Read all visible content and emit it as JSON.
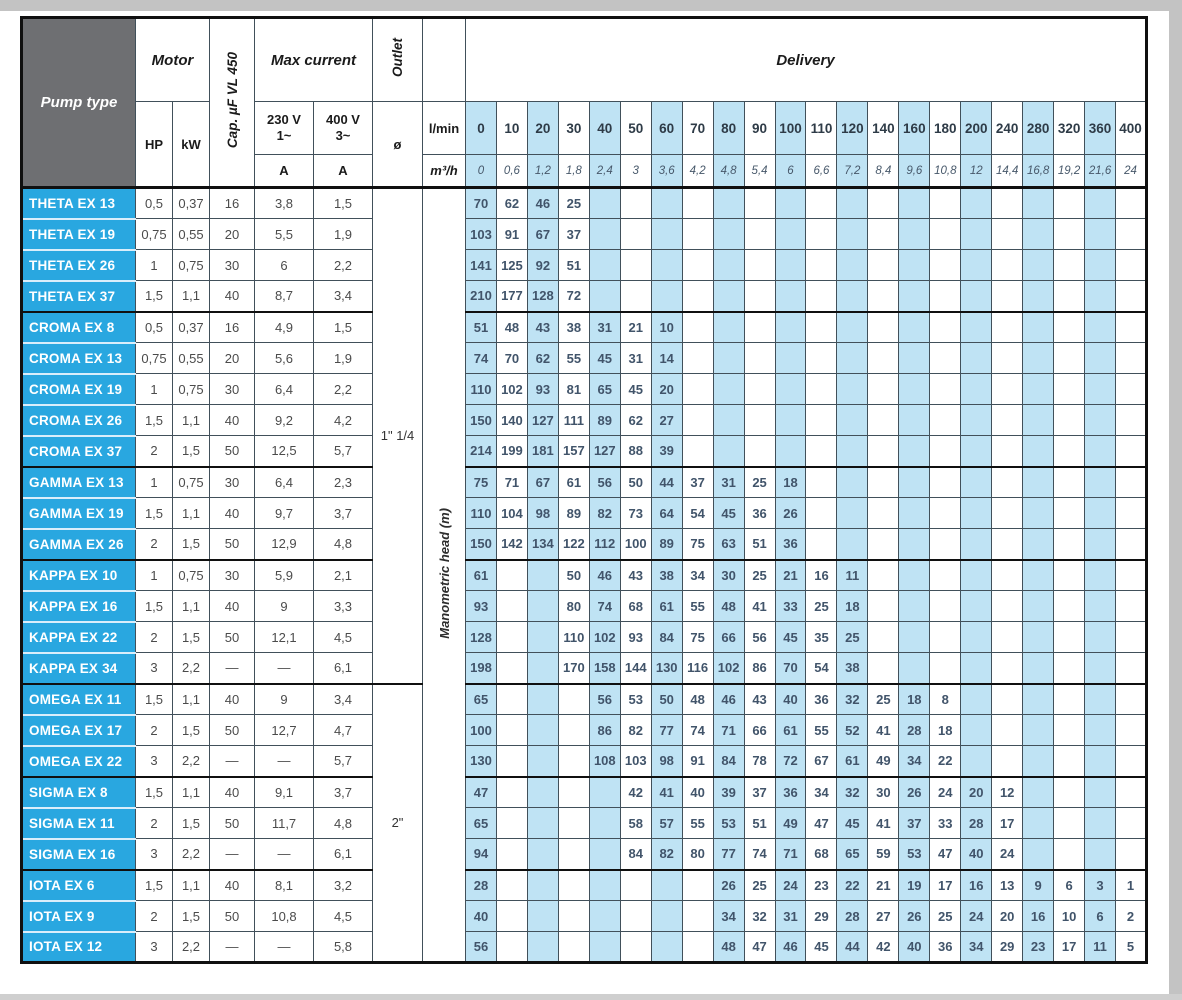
{
  "header": {
    "pump_type": "Pump type",
    "motor": "Motor",
    "hp": "HP",
    "kw": "kW",
    "cap": "Cap. µF VL 450",
    "max_current": "Max current",
    "v230": "230 V\n1~",
    "v400": "400 V\n3~",
    "amp": "A",
    "outlet": "Outlet",
    "diameter": "ø",
    "delivery": "Delivery",
    "lmin": "l/min",
    "m3h": "m³/h",
    "manometric": "Manometric head (m)"
  },
  "colors": {
    "pump_blue": "#29a7e0",
    "header_gray": "#6e6f72",
    "column_light_blue": "#bfe3f4"
  },
  "flow_lmin": [
    "0",
    "10",
    "20",
    "30",
    "40",
    "50",
    "60",
    "70",
    "80",
    "90",
    "100",
    "110",
    "120",
    "140",
    "160",
    "180",
    "200",
    "240",
    "280",
    "320",
    "360",
    "400"
  ],
  "flow_m3h": [
    "0",
    "0,6",
    "1,2",
    "1,8",
    "2,4",
    "3",
    "3,6",
    "4,2",
    "4,8",
    "5,4",
    "6",
    "6,6",
    "7,2",
    "8,4",
    "9,6",
    "10,8",
    "12",
    "14,4",
    "16,8",
    "19,2",
    "21,6",
    "24"
  ],
  "rows": [
    {
      "name": "THETA EX 13",
      "hp": "0,5",
      "kw": "0,37",
      "cap": "16",
      "a230": "3,8",
      "a400": "1,5",
      "group_start": true,
      "outlet": {
        "label": "1\" 1/4",
        "span": 16
      },
      "head": [
        "70",
        "62",
        "46",
        "25",
        "",
        "",
        "",
        "",
        "",
        "",
        "",
        "",
        "",
        "",
        "",
        "",
        "",
        "",
        "",
        "",
        "",
        ""
      ]
    },
    {
      "name": "THETA EX 19",
      "hp": "0,75",
      "kw": "0,55",
      "cap": "20",
      "a230": "5,5",
      "a400": "1,9",
      "head": [
        "103",
        "91",
        "67",
        "37",
        "",
        "",
        "",
        "",
        "",
        "",
        "",
        "",
        "",
        "",
        "",
        "",
        "",
        "",
        "",
        "",
        "",
        ""
      ]
    },
    {
      "name": "THETA EX 26",
      "hp": "1",
      "kw": "0,75",
      "cap": "30",
      "a230": "6",
      "a400": "2,2",
      "head": [
        "141",
        "125",
        "92",
        "51",
        "",
        "",
        "",
        "",
        "",
        "",
        "",
        "",
        "",
        "",
        "",
        "",
        "",
        "",
        "",
        "",
        "",
        ""
      ]
    },
    {
      "name": "THETA EX 37",
      "hp": "1,5",
      "kw": "1,1",
      "cap": "40",
      "a230": "8,7",
      "a400": "3,4",
      "head": [
        "210",
        "177",
        "128",
        "72",
        "",
        "",
        "",
        "",
        "",
        "",
        "",
        "",
        "",
        "",
        "",
        "",
        "",
        "",
        "",
        "",
        "",
        ""
      ]
    },
    {
      "name": "CROMA EX 8",
      "hp": "0,5",
      "kw": "0,37",
      "cap": "16",
      "a230": "4,9",
      "a400": "1,5",
      "group_start": true,
      "head": [
        "51",
        "48",
        "43",
        "38",
        "31",
        "21",
        "10",
        "",
        "",
        "",
        "",
        "",
        "",
        "",
        "",
        "",
        "",
        "",
        "",
        "",
        "",
        ""
      ]
    },
    {
      "name": "CROMA EX 13",
      "hp": "0,75",
      "kw": "0,55",
      "cap": "20",
      "a230": "5,6",
      "a400": "1,9",
      "head": [
        "74",
        "70",
        "62",
        "55",
        "45",
        "31",
        "14",
        "",
        "",
        "",
        "",
        "",
        "",
        "",
        "",
        "",
        "",
        "",
        "",
        "",
        "",
        ""
      ]
    },
    {
      "name": "CROMA EX 19",
      "hp": "1",
      "kw": "0,75",
      "cap": "30",
      "a230": "6,4",
      "a400": "2,2",
      "head": [
        "110",
        "102",
        "93",
        "81",
        "65",
        "45",
        "20",
        "",
        "",
        "",
        "",
        "",
        "",
        "",
        "",
        "",
        "",
        "",
        "",
        "",
        "",
        ""
      ]
    },
    {
      "name": "CROMA EX 26",
      "hp": "1,5",
      "kw": "1,1",
      "cap": "40",
      "a230": "9,2",
      "a400": "4,2",
      "head": [
        "150",
        "140",
        "127",
        "111",
        "89",
        "62",
        "27",
        "",
        "",
        "",
        "",
        "",
        "",
        "",
        "",
        "",
        "",
        "",
        "",
        "",
        "",
        ""
      ]
    },
    {
      "name": "CROMA EX 37",
      "hp": "2",
      "kw": "1,5",
      "cap": "50",
      "a230": "12,5",
      "a400": "5,7",
      "head": [
        "214",
        "199",
        "181",
        "157",
        "127",
        "88",
        "39",
        "",
        "",
        "",
        "",
        "",
        "",
        "",
        "",
        "",
        "",
        "",
        "",
        "",
        "",
        ""
      ]
    },
    {
      "name": "GAMMA EX 13",
      "hp": "1",
      "kw": "0,75",
      "cap": "30",
      "a230": "6,4",
      "a400": "2,3",
      "group_start": true,
      "head": [
        "75",
        "71",
        "67",
        "61",
        "56",
        "50",
        "44",
        "37",
        "31",
        "25",
        "18",
        "",
        "",
        "",
        "",
        "",
        "",
        "",
        "",
        "",
        "",
        ""
      ]
    },
    {
      "name": "GAMMA EX 19",
      "hp": "1,5",
      "kw": "1,1",
      "cap": "40",
      "a230": "9,7",
      "a400": "3,7",
      "head": [
        "110",
        "104",
        "98",
        "89",
        "82",
        "73",
        "64",
        "54",
        "45",
        "36",
        "26",
        "",
        "",
        "",
        "",
        "",
        "",
        "",
        "",
        "",
        "",
        ""
      ]
    },
    {
      "name": "GAMMA EX 26",
      "hp": "2",
      "kw": "1,5",
      "cap": "50",
      "a230": "12,9",
      "a400": "4,8",
      "head": [
        "150",
        "142",
        "134",
        "122",
        "112",
        "100",
        "89",
        "75",
        "63",
        "51",
        "36",
        "",
        "",
        "",
        "",
        "",
        "",
        "",
        "",
        "",
        "",
        ""
      ]
    },
    {
      "name": "KAPPA EX 10",
      "hp": "1",
      "kw": "0,75",
      "cap": "30",
      "a230": "5,9",
      "a400": "2,1",
      "group_start": true,
      "head": [
        "61",
        "",
        "",
        "50",
        "46",
        "43",
        "38",
        "34",
        "30",
        "25",
        "21",
        "16",
        "11",
        "",
        "",
        "",
        "",
        "",
        "",
        "",
        "",
        ""
      ]
    },
    {
      "name": "KAPPA EX 16",
      "hp": "1,5",
      "kw": "1,1",
      "cap": "40",
      "a230": "9",
      "a400": "3,3",
      "head": [
        "93",
        "",
        "",
        "80",
        "74",
        "68",
        "61",
        "55",
        "48",
        "41",
        "33",
        "25",
        "18",
        "",
        "",
        "",
        "",
        "",
        "",
        "",
        "",
        ""
      ]
    },
    {
      "name": "KAPPA EX 22",
      "hp": "2",
      "kw": "1,5",
      "cap": "50",
      "a230": "12,1",
      "a400": "4,5",
      "head": [
        "128",
        "",
        "",
        "110",
        "102",
        "93",
        "84",
        "75",
        "66",
        "56",
        "45",
        "35",
        "25",
        "",
        "",
        "",
        "",
        "",
        "",
        "",
        "",
        ""
      ]
    },
    {
      "name": "KAPPA EX 34",
      "hp": "3",
      "kw": "2,2",
      "cap": "—",
      "a230": "—",
      "a400": "6,1",
      "head": [
        "198",
        "",
        "",
        "170",
        "158",
        "144",
        "130",
        "116",
        "102",
        "86",
        "70",
        "54",
        "38",
        "",
        "",
        "",
        "",
        "",
        "",
        "",
        "",
        ""
      ]
    },
    {
      "name": "OMEGA EX 11",
      "hp": "1,5",
      "kw": "1,1",
      "cap": "40",
      "a230": "9",
      "a400": "3,4",
      "group_start": true,
      "outlet": {
        "label": "2\"",
        "span": 9
      },
      "head": [
        "65",
        "",
        "",
        "",
        "56",
        "53",
        "50",
        "48",
        "46",
        "43",
        "40",
        "36",
        "32",
        "25",
        "18",
        "8",
        "",
        "",
        "",
        "",
        "",
        ""
      ]
    },
    {
      "name": "OMEGA EX 17",
      "hp": "2",
      "kw": "1,5",
      "cap": "50",
      "a230": "12,7",
      "a400": "4,7",
      "head": [
        "100",
        "",
        "",
        "",
        "86",
        "82",
        "77",
        "74",
        "71",
        "66",
        "61",
        "55",
        "52",
        "41",
        "28",
        "18",
        "",
        "",
        "",
        "",
        "",
        ""
      ]
    },
    {
      "name": "OMEGA EX 22",
      "hp": "3",
      "kw": "2,2",
      "cap": "—",
      "a230": "—",
      "a400": "5,7",
      "head": [
        "130",
        "",
        "",
        "",
        "108",
        "103",
        "98",
        "91",
        "84",
        "78",
        "72",
        "67",
        "61",
        "49",
        "34",
        "22",
        "",
        "",
        "",
        "",
        "",
        ""
      ]
    },
    {
      "name": "SIGMA EX 8",
      "hp": "1,5",
      "kw": "1,1",
      "cap": "40",
      "a230": "9,1",
      "a400": "3,7",
      "group_start": true,
      "head": [
        "47",
        "",
        "",
        "",
        "",
        "42",
        "41",
        "40",
        "39",
        "37",
        "36",
        "34",
        "32",
        "30",
        "26",
        "24",
        "20",
        "12",
        "",
        "",
        "",
        ""
      ]
    },
    {
      "name": "SIGMA EX 11",
      "hp": "2",
      "kw": "1,5",
      "cap": "50",
      "a230": "11,7",
      "a400": "4,8",
      "head": [
        "65",
        "",
        "",
        "",
        "",
        "58",
        "57",
        "55",
        "53",
        "51",
        "49",
        "47",
        "45",
        "41",
        "37",
        "33",
        "28",
        "17",
        "",
        "",
        "",
        ""
      ]
    },
    {
      "name": "SIGMA EX 16",
      "hp": "3",
      "kw": "2,2",
      "cap": "—",
      "a230": "—",
      "a400": "6,1",
      "head": [
        "94",
        "",
        "",
        "",
        "",
        "84",
        "82",
        "80",
        "77",
        "74",
        "71",
        "68",
        "65",
        "59",
        "53",
        "47",
        "40",
        "24",
        "",
        "",
        "",
        ""
      ]
    },
    {
      "name": "IOTA EX 6",
      "hp": "1,5",
      "kw": "1,1",
      "cap": "40",
      "a230": "8,1",
      "a400": "3,2",
      "group_start": true,
      "head": [
        "28",
        "",
        "",
        "",
        "",
        "",
        "",
        "",
        "26",
        "25",
        "24",
        "23",
        "22",
        "21",
        "19",
        "17",
        "16",
        "13",
        "9",
        "6",
        "3",
        "1"
      ]
    },
    {
      "name": "IOTA EX 9",
      "hp": "2",
      "kw": "1,5",
      "cap": "50",
      "a230": "10,8",
      "a400": "4,5",
      "head": [
        "40",
        "",
        "",
        "",
        "",
        "",
        "",
        "",
        "34",
        "32",
        "31",
        "29",
        "28",
        "27",
        "26",
        "25",
        "24",
        "20",
        "16",
        "10",
        "6",
        "2"
      ]
    },
    {
      "name": "IOTA EX 12",
      "hp": "3",
      "kw": "2,2",
      "cap": "—",
      "a230": "—",
      "a400": "5,8",
      "head": [
        "56",
        "",
        "",
        "",
        "",
        "",
        "",
        "",
        "48",
        "47",
        "46",
        "45",
        "44",
        "42",
        "40",
        "36",
        "34",
        "29",
        "23",
        "17",
        "11",
        "5"
      ]
    }
  ]
}
